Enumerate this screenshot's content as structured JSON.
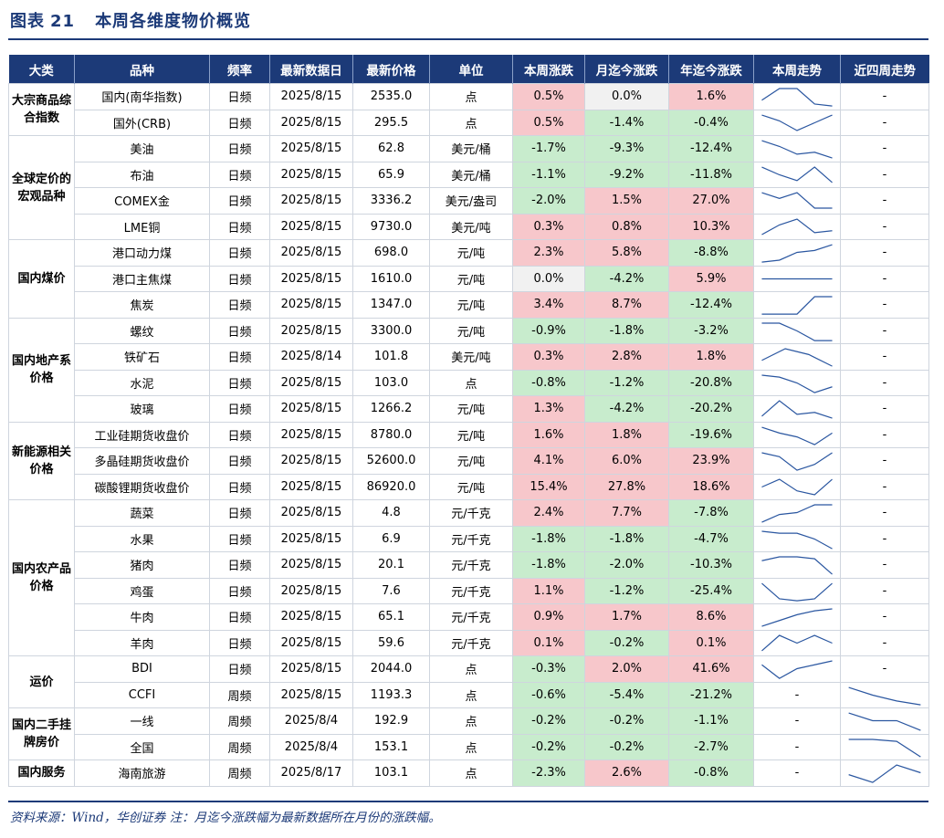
{
  "figure": {
    "label": "图表",
    "number": "21",
    "title": "本周各维度物价概览"
  },
  "headers": [
    "大类",
    "品种",
    "频率",
    "最新数据日",
    "最新价格",
    "单位",
    "本周涨跌",
    "月迄今涨跌",
    "年迄今涨跌",
    "本周走势",
    "近四周走势"
  ],
  "groups": [
    {
      "category": "大宗商品综合指数",
      "rows": [
        {
          "name": "国内(南华指数)",
          "freq": "日频",
          "date": "2025/8/15",
          "price": "2535.0",
          "unit": "点",
          "wk": "0.5%",
          "mtd": "0.0%",
          "ytd": "1.6%",
          "week_trend": [
            0.3,
            0.9,
            0.9,
            0.1,
            0.0
          ],
          "four_week_trend": null
        },
        {
          "name": "国外(CRB)",
          "freq": "日频",
          "date": "2025/8/15",
          "price": "295.5",
          "unit": "点",
          "wk": "0.5%",
          "mtd": "-1.4%",
          "ytd": "-0.4%",
          "week_trend": [
            0.9,
            0.6,
            0.1,
            0.5,
            0.9
          ],
          "four_week_trend": null
        }
      ]
    },
    {
      "category": "全球定价的宏观品种",
      "rows": [
        {
          "name": "美油",
          "freq": "日频",
          "date": "2025/8/15",
          "price": "62.8",
          "unit": "美元/桶",
          "wk": "-1.7%",
          "mtd": "-9.3%",
          "ytd": "-12.4%",
          "week_trend": [
            0.9,
            0.6,
            0.2,
            0.3,
            0.0
          ],
          "four_week_trend": null
        },
        {
          "name": "布油",
          "freq": "日频",
          "date": "2025/8/15",
          "price": "65.9",
          "unit": "美元/桶",
          "wk": "-1.1%",
          "mtd": "-9.2%",
          "ytd": "-11.8%",
          "week_trend": [
            0.9,
            0.5,
            0.2,
            0.9,
            0.1
          ],
          "four_week_trend": null
        },
        {
          "name": "COMEX金",
          "freq": "日频",
          "date": "2025/8/15",
          "price": "3336.2",
          "unit": "美元/盎司",
          "wk": "-2.0%",
          "mtd": "1.5%",
          "ytd": "27.0%",
          "week_trend": [
            0.9,
            0.6,
            0.9,
            0.1,
            0.1
          ],
          "four_week_trend": null
        },
        {
          "name": "LME铜",
          "freq": "日频",
          "date": "2025/8/15",
          "price": "9730.0",
          "unit": "美元/吨",
          "wk": "0.3%",
          "mtd": "0.8%",
          "ytd": "10.3%",
          "week_trend": [
            0.1,
            0.6,
            0.9,
            0.2,
            0.3
          ],
          "four_week_trend": null
        }
      ]
    },
    {
      "category": "国内煤价",
      "rows": [
        {
          "name": "港口动力煤",
          "freq": "日频",
          "date": "2025/8/15",
          "price": "698.0",
          "unit": "元/吨",
          "wk": "2.3%",
          "mtd": "5.8%",
          "ytd": "-8.8%",
          "week_trend": [
            0.0,
            0.1,
            0.5,
            0.6,
            0.9
          ],
          "four_week_trend": null
        },
        {
          "name": "港口主焦煤",
          "freq": "日频",
          "date": "2025/8/15",
          "price": "1610.0",
          "unit": "元/吨",
          "wk": "0.0%",
          "mtd": "-4.2%",
          "ytd": "5.9%",
          "week_trend": [
            0.5,
            0.5,
            0.5,
            0.5,
            0.5
          ],
          "four_week_trend": null
        },
        {
          "name": "焦炭",
          "freq": "日频",
          "date": "2025/8/15",
          "price": "1347.0",
          "unit": "元/吨",
          "wk": "3.4%",
          "mtd": "8.7%",
          "ytd": "-12.4%",
          "week_trend": [
            0.0,
            0.0,
            0.0,
            0.9,
            0.9
          ],
          "four_week_trend": null
        }
      ]
    },
    {
      "category": "国内地产系价格",
      "rows": [
        {
          "name": "螺纹",
          "freq": "日频",
          "date": "2025/8/15",
          "price": "3300.0",
          "unit": "元/吨",
          "wk": "-0.9%",
          "mtd": "-1.8%",
          "ytd": "-3.2%",
          "week_trend": [
            0.9,
            0.9,
            0.5,
            0.0,
            0.0
          ],
          "four_week_trend": null
        },
        {
          "name": "铁矿石",
          "freq": "日频",
          "date": "2025/8/14",
          "price": "101.8",
          "unit": "美元/吨",
          "wk": "0.3%",
          "mtd": "2.8%",
          "ytd": "1.8%",
          "week_trend": [
            0.3,
            0.9,
            0.6,
            0.0
          ],
          "four_week_trend": null
        },
        {
          "name": "水泥",
          "freq": "日频",
          "date": "2025/8/15",
          "price": "103.0",
          "unit": "点",
          "wk": "-0.8%",
          "mtd": "-1.2%",
          "ytd": "-20.8%",
          "week_trend": [
            0.9,
            0.8,
            0.5,
            0.0,
            0.3
          ],
          "four_week_trend": null
        },
        {
          "name": "玻璃",
          "freq": "日频",
          "date": "2025/8/15",
          "price": "1266.2",
          "unit": "元/吨",
          "wk": "1.3%",
          "mtd": "-4.2%",
          "ytd": "-20.2%",
          "week_trend": [
            0.1,
            0.9,
            0.2,
            0.3,
            0.0
          ],
          "four_week_trend": null
        }
      ]
    },
    {
      "category": "新能源相关价格",
      "rows": [
        {
          "name": "工业硅期货收盘价",
          "freq": "日频",
          "date": "2025/8/15",
          "price": "8780.0",
          "unit": "元/吨",
          "wk": "1.6%",
          "mtd": "1.8%",
          "ytd": "-19.6%",
          "week_trend": [
            0.9,
            0.6,
            0.4,
            0.0,
            0.6
          ],
          "four_week_trend": null
        },
        {
          "name": "多晶硅期货收盘价",
          "freq": "日频",
          "date": "2025/8/15",
          "price": "52600.0",
          "unit": "元/吨",
          "wk": "4.1%",
          "mtd": "6.0%",
          "ytd": "23.9%",
          "week_trend": [
            0.9,
            0.7,
            0.0,
            0.3,
            0.9
          ],
          "four_week_trend": null
        },
        {
          "name": "碳酸锂期货收盘价",
          "freq": "日频",
          "date": "2025/8/15",
          "price": "86920.0",
          "unit": "元/吨",
          "wk": "15.4%",
          "mtd": "27.8%",
          "ytd": "18.6%",
          "week_trend": [
            0.5,
            0.9,
            0.3,
            0.1,
            0.9
          ],
          "four_week_trend": null
        }
      ]
    },
    {
      "category": "国内农产品价格",
      "rows": [
        {
          "name": "蔬菜",
          "freq": "日频",
          "date": "2025/8/15",
          "price": "4.8",
          "unit": "元/千克",
          "wk": "2.4%",
          "mtd": "7.7%",
          "ytd": "-7.8%",
          "week_trend": [
            0.0,
            0.4,
            0.5,
            0.9,
            0.9
          ],
          "four_week_trend": null
        },
        {
          "name": "水果",
          "freq": "日频",
          "date": "2025/8/15",
          "price": "6.9",
          "unit": "元/千克",
          "wk": "-1.8%",
          "mtd": "-1.8%",
          "ytd": "-4.7%",
          "week_trend": [
            0.9,
            0.8,
            0.8,
            0.5,
            0.0
          ],
          "four_week_trend": null
        },
        {
          "name": "猪肉",
          "freq": "日频",
          "date": "2025/8/15",
          "price": "20.1",
          "unit": "元/千克",
          "wk": "-1.8%",
          "mtd": "-2.0%",
          "ytd": "-10.3%",
          "week_trend": [
            0.7,
            0.9,
            0.9,
            0.8,
            0.0
          ],
          "four_week_trend": null
        },
        {
          "name": "鸡蛋",
          "freq": "日频",
          "date": "2025/8/15",
          "price": "7.6",
          "unit": "元/千克",
          "wk": "1.1%",
          "mtd": "-1.2%",
          "ytd": "-25.4%",
          "week_trend": [
            0.9,
            0.1,
            0.0,
            0.1,
            0.9
          ],
          "four_week_trend": null
        },
        {
          "name": "牛肉",
          "freq": "日频",
          "date": "2025/8/15",
          "price": "65.1",
          "unit": "元/千克",
          "wk": "0.9%",
          "mtd": "1.7%",
          "ytd": "8.6%",
          "week_trend": [
            0.0,
            0.3,
            0.6,
            0.8,
            0.9
          ],
          "four_week_trend": null
        },
        {
          "name": "羊肉",
          "freq": "日频",
          "date": "2025/8/15",
          "price": "59.6",
          "unit": "元/千克",
          "wk": "0.1%",
          "mtd": "-0.2%",
          "ytd": "0.1%",
          "week_trend": [
            0.1,
            0.9,
            0.5,
            0.9,
            0.5
          ],
          "four_week_trend": null
        }
      ]
    },
    {
      "category": "运价",
      "rows": [
        {
          "name": "BDI",
          "freq": "日频",
          "date": "2025/8/15",
          "price": "2044.0",
          "unit": "点",
          "wk": "-0.3%",
          "mtd": "2.0%",
          "ytd": "41.6%",
          "week_trend": [
            0.7,
            0.0,
            0.5,
            0.7,
            0.9
          ],
          "four_week_trend": null
        },
        {
          "name": "CCFI",
          "freq": "周频",
          "date": "2025/8/15",
          "price": "1193.3",
          "unit": "点",
          "wk": "-0.6%",
          "mtd": "-5.4%",
          "ytd": "-21.2%",
          "week_trend": null,
          "four_week_trend": [
            0.9,
            0.5,
            0.2,
            0.0
          ]
        }
      ]
    },
    {
      "category": "国内二手挂牌房价",
      "rows": [
        {
          "name": "一线",
          "freq": "周频",
          "date": "2025/8/4",
          "price": "192.9",
          "unit": "点",
          "wk": "-0.2%",
          "mtd": "-0.2%",
          "ytd": "-1.1%",
          "week_trend": null,
          "four_week_trend": [
            0.9,
            0.5,
            0.5,
            0.0
          ]
        },
        {
          "name": "全国",
          "freq": "周频",
          "date": "2025/8/4",
          "price": "153.1",
          "unit": "点",
          "wk": "-0.2%",
          "mtd": "-0.2%",
          "ytd": "-2.7%",
          "week_trend": null,
          "four_week_trend": [
            0.9,
            0.9,
            0.8,
            0.0
          ]
        }
      ]
    },
    {
      "category": "国内服务",
      "rows": [
        {
          "name": "海南旅游",
          "freq": "周频",
          "date": "2025/8/17",
          "price": "103.1",
          "unit": "点",
          "wk": "-2.3%",
          "mtd": "2.6%",
          "ytd": "-0.8%",
          "week_trend": null,
          "four_week_trend": [
            0.4,
            0.0,
            0.9,
            0.5
          ]
        }
      ]
    }
  ],
  "placeholder": "-",
  "footnote": "资料来源：Wind，华创证券 注：月迄今涨跌幅为最新数据所在月份的涨跌幅。",
  "colors": {
    "header_bg": "#1c3a78",
    "positive_bg": "#f7c7cb",
    "negative_bg": "#c8eccd",
    "zero_bg": "#f1f1f1",
    "sparkline": "#2a56a0"
  }
}
